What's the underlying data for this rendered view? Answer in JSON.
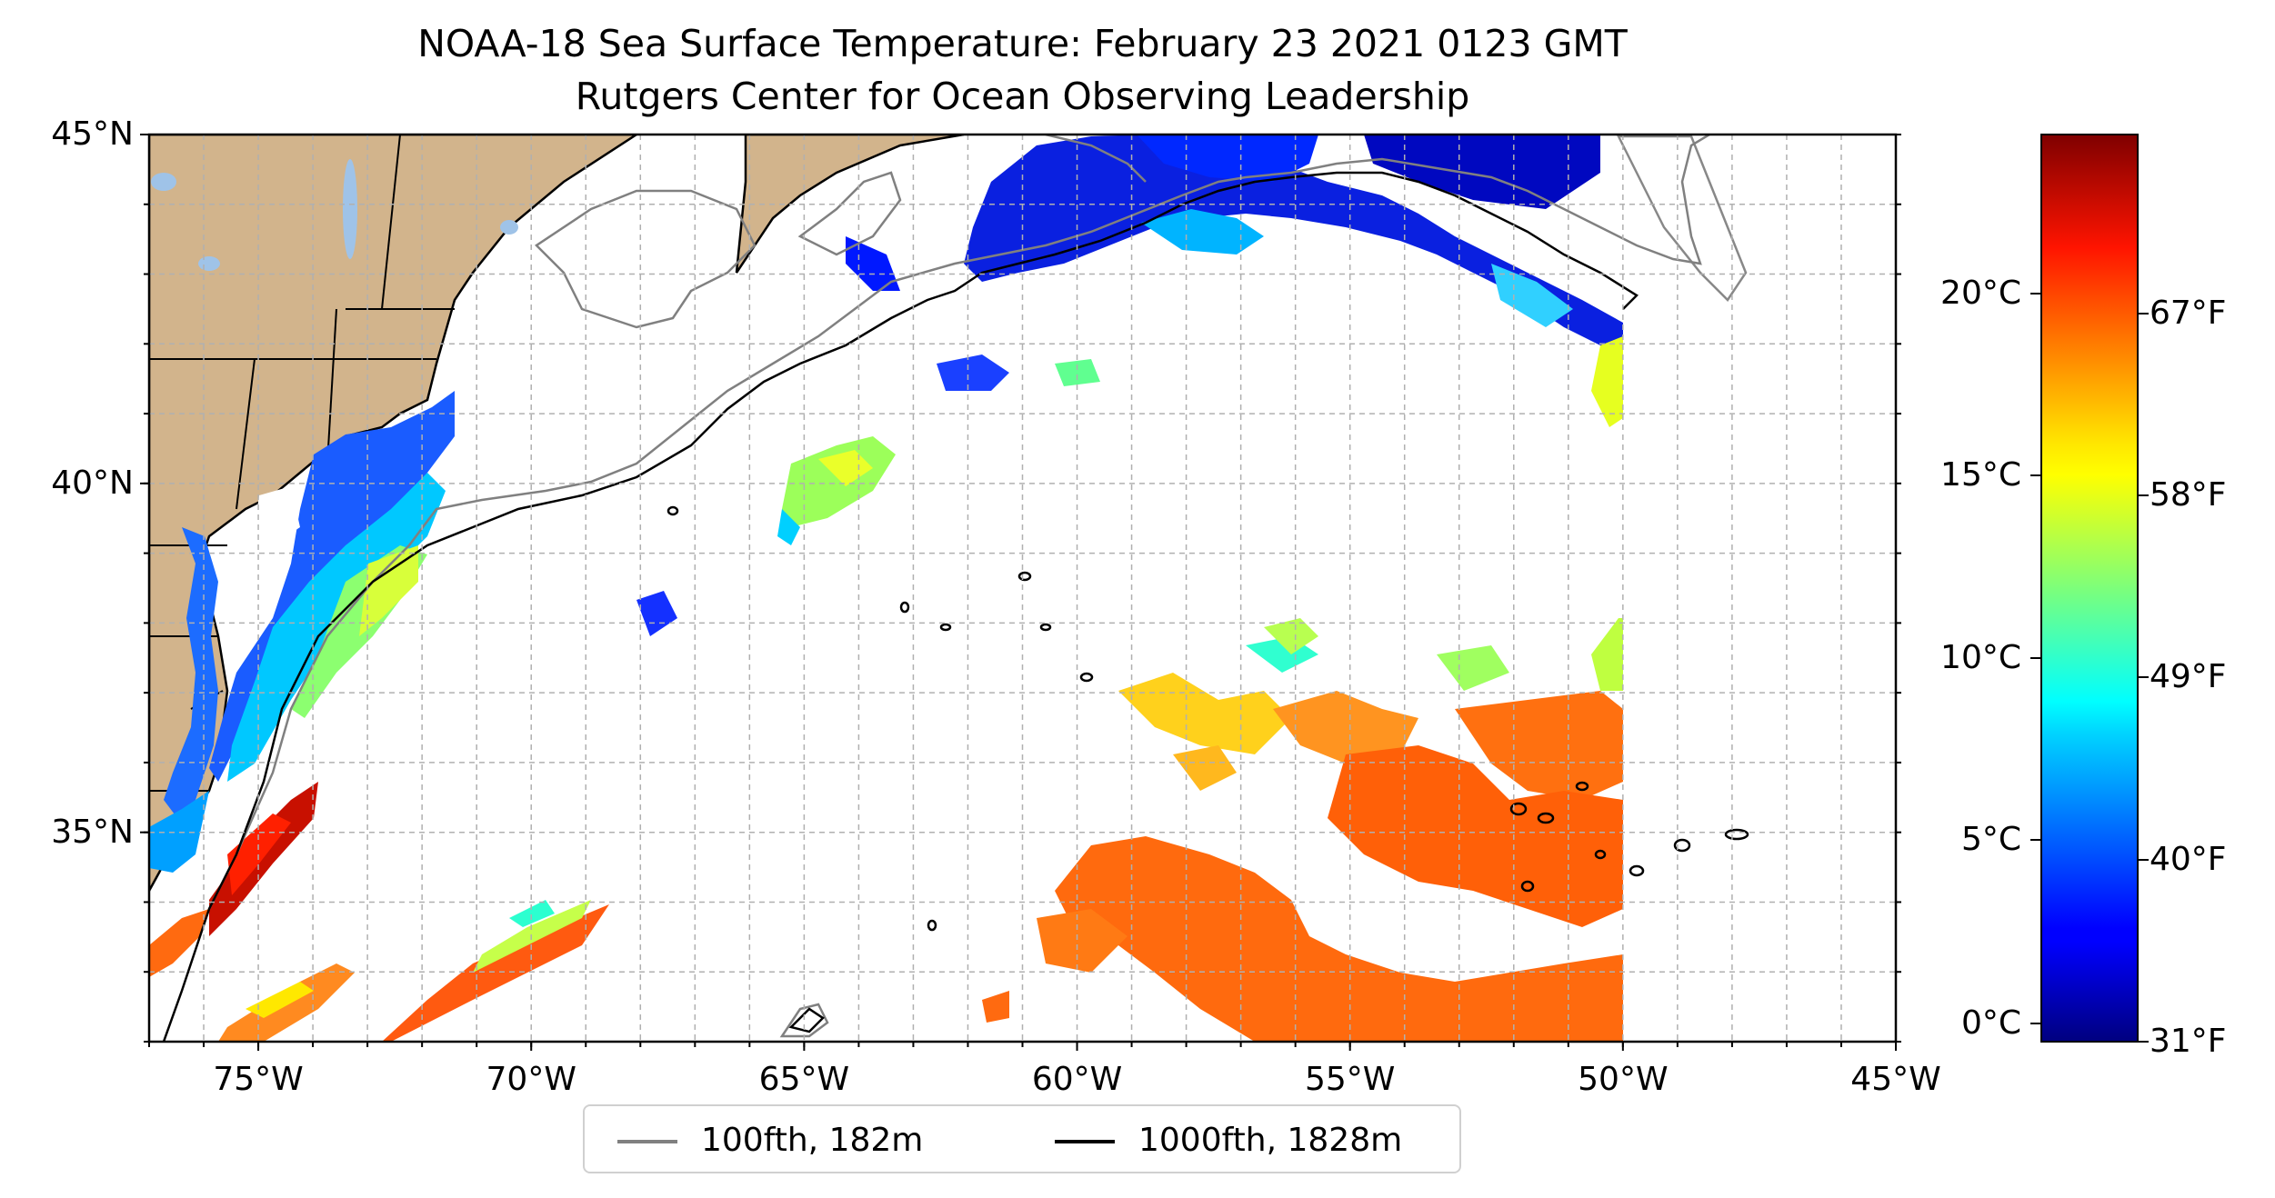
{
  "title": "NOAA-18 Sea Surface Temperature: February 23 2021 0123 GMT",
  "subtitle": "Rutgers Center for Ocean Observing Leadership",
  "map": {
    "lon_range": [
      -77,
      -45
    ],
    "lat_range": [
      32,
      45
    ],
    "lat_ticks": [
      {
        "value": 45,
        "label": "45°N"
      },
      {
        "value": 40,
        "label": "40°N"
      },
      {
        "value": 35,
        "label": "35°N"
      }
    ],
    "lon_ticks": [
      {
        "value": -75,
        "label": "75°W"
      },
      {
        "value": -70,
        "label": "70°W"
      },
      {
        "value": -65,
        "label": "65°W"
      },
      {
        "value": -60,
        "label": "60°W"
      },
      {
        "value": -55,
        "label": "55°W"
      },
      {
        "value": -50,
        "label": "50°W"
      },
      {
        "value": -45,
        "label": "45°W"
      }
    ],
    "gridlines": "dashed, 1° spacing",
    "land_color": "#d2b48c",
    "lake_color": "#9fc3e8"
  },
  "colorbar": {
    "colormap": "jet",
    "celsius_ticks": [
      "0°C",
      "5°C",
      "10°C",
      "15°C",
      "20°C"
    ],
    "fahrenheit_ticks": [
      "31°F",
      "40°F",
      "49°F",
      "58°F",
      "67°F"
    ]
  },
  "legend": {
    "items": [
      {
        "label": "100fth, 182m",
        "color": "#808080"
      },
      {
        "label": "1000fth, 1828m",
        "color": "#000000"
      }
    ]
  }
}
